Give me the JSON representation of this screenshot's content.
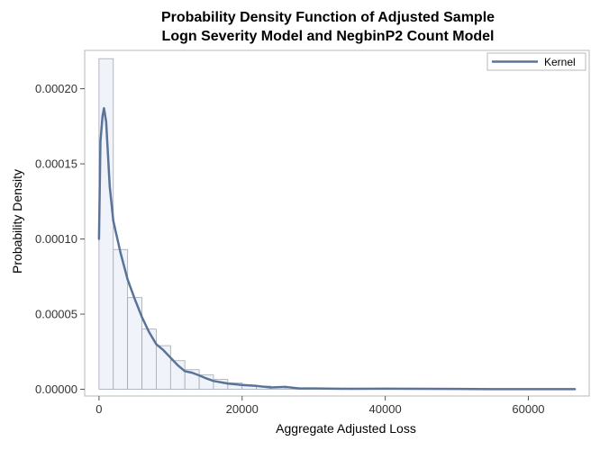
{
  "chart_data": {
    "type": "bar",
    "title": "Probability Density Function of Adjusted Sample",
    "subtitle": "Logn Severity Model and NegbinP2 Count Model",
    "xlabel": "Aggregate Adjusted Loss",
    "ylabel": "Probability Density",
    "xlim": [
      -2000,
      68500
    ],
    "ylim": [
      -4.5e-06,
      0.0002255
    ],
    "x_ticks": [
      0,
      20000,
      40000,
      60000
    ],
    "x_tick_labels": [
      "0",
      "20000",
      "40000",
      "60000"
    ],
    "y_ticks": [
      0,
      5e-05,
      0.0001,
      0.00015,
      0.0002
    ],
    "y_tick_labels": [
      "0.00000",
      "0.00005",
      "0.00010",
      "0.00015",
      "0.00020"
    ],
    "grid": false,
    "legend_position": "top-right",
    "histogram": {
      "bin_width": 2000,
      "bin_starts": [
        0,
        2000,
        4000,
        6000,
        8000,
        10000,
        12000,
        14000,
        16000,
        18000,
        20000,
        22000,
        24000,
        26000,
        28000
      ],
      "values": [
        0.00022,
        9.3e-05,
        6.1e-05,
        4e-05,
        2.9e-05,
        1.9e-05,
        1.3e-05,
        9.5e-06,
        6.5e-06,
        4.2e-06,
        2.8e-06,
        2.1e-06,
        1.3e-06,
        9e-07,
        5e-07
      ],
      "fill": "#f0f4fa",
      "stroke": "#a0a8b4"
    },
    "series": [
      {
        "name": "Kernel",
        "type": "line",
        "color": "#5a7399",
        "x": [
          0,
          200,
          500,
          700,
          1000,
          1500,
          2000,
          3000,
          4000,
          5000,
          6000,
          7000,
          8000,
          9000,
          10000,
          11000,
          12000,
          13000,
          14000,
          15000,
          16000,
          18000,
          20000,
          22000,
          24000,
          26000,
          28000,
          30000,
          35000,
          40000,
          45000,
          50000,
          55000,
          60000,
          66500
        ],
        "y": [
          0.0001,
          0.000165,
          0.000182,
          0.000187,
          0.000178,
          0.000135,
          0.000112,
          9.1e-05,
          7.3e-05,
          6e-05,
          4.8e-05,
          3.8e-05,
          3e-05,
          2.6e-05,
          2.1e-05,
          1.6e-05,
          1.2e-05,
          1.1e-05,
          9.2e-06,
          7.2e-06,
          5.5e-06,
          3.8e-06,
          2.8e-06,
          2.2e-06,
          1.2e-06,
          1.6e-06,
          5e-07,
          5e-07,
          3e-07,
          4e-07,
          3e-07,
          2e-07,
          1e-07,
          1e-07,
          1e-07
        ]
      }
    ]
  }
}
